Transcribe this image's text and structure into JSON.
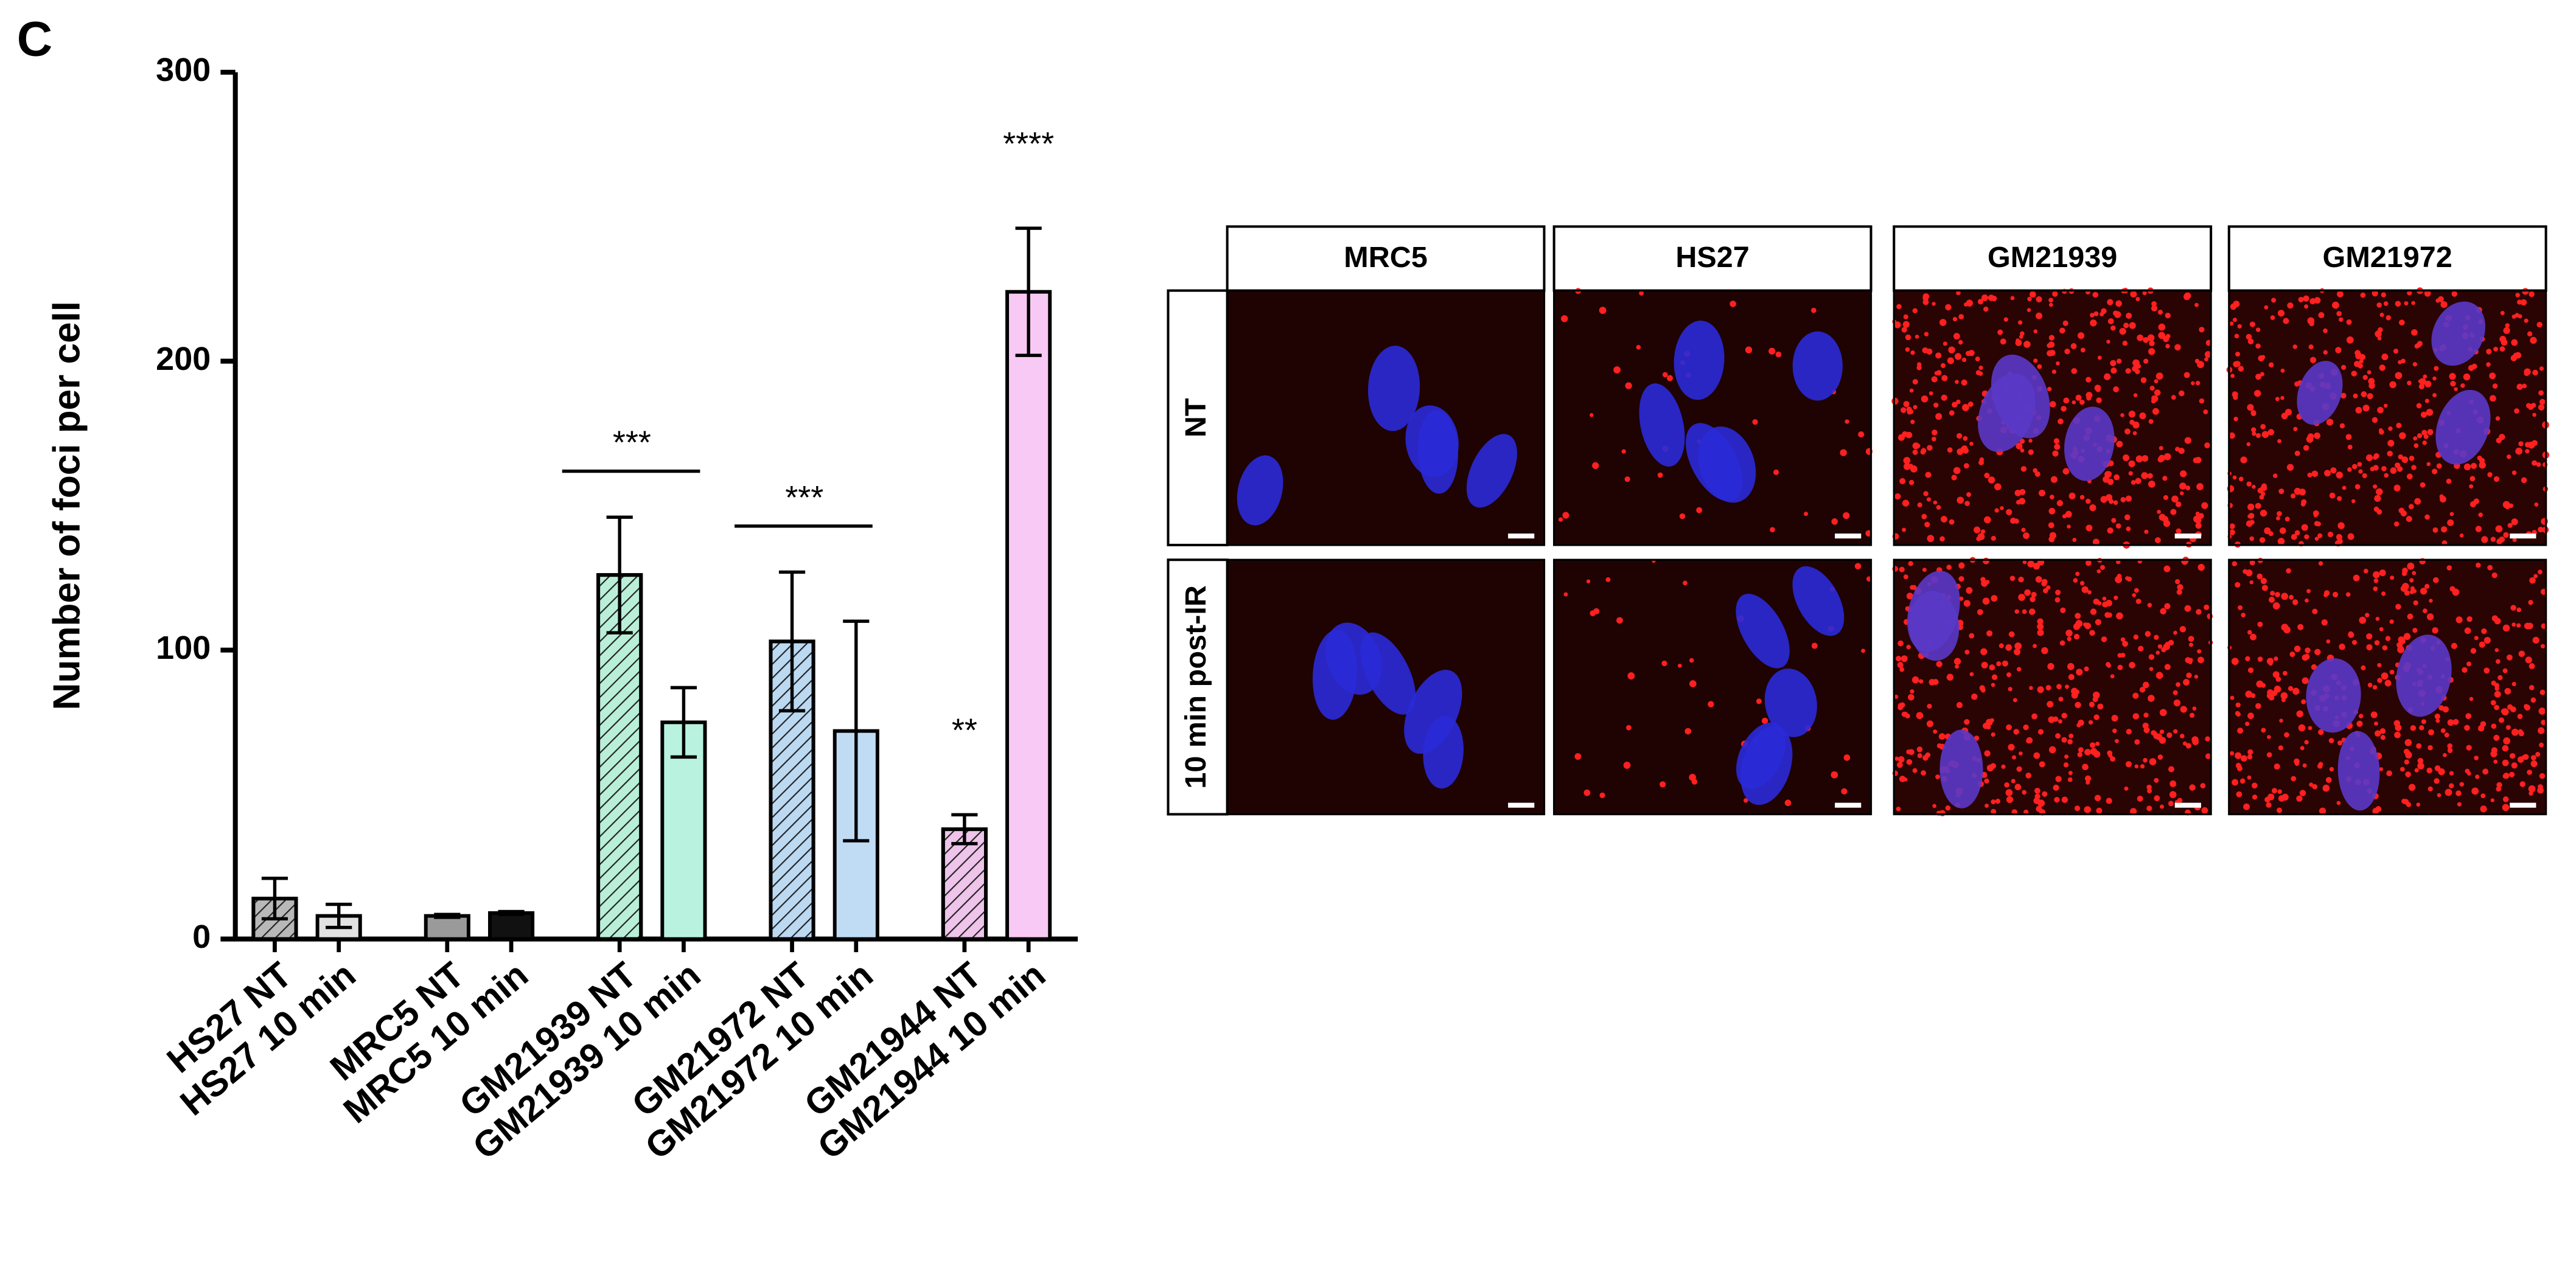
{
  "panel_label": "C",
  "chart_data": {
    "type": "bar",
    "ylabel": "Number of foci per cell",
    "categories": [
      "HS27 NT",
      "HS27 10 min",
      "MRC5 NT",
      "MRC5 10 min",
      "GM21939 NT",
      "GM21939 10 min",
      "GM21972 NT",
      "GM21972 10 min",
      "GM21944 NT",
      "GM21944 10 min"
    ],
    "values": [
      14,
      8,
      8,
      9,
      126,
      75,
      103,
      72,
      38,
      224
    ],
    "errors": [
      7,
      4,
      0.5,
      0.5,
      20,
      12,
      24,
      38,
      5,
      22
    ],
    "colors": [
      "#b8b8b8",
      "#e2e2e2",
      "#9a9a9a",
      "#111111",
      "#b9efd8",
      "#b9f3df",
      "#bcd9f2",
      "#c0dcf5",
      "#eec4ea",
      "#f7c9f4"
    ],
    "hatch": [
      true,
      false,
      false,
      false,
      true,
      false,
      true,
      false,
      true,
      false
    ],
    "ylim": [
      0,
      300
    ],
    "yticks": [
      0,
      100,
      200,
      300
    ],
    "annotations": [
      {
        "label": "***",
        "between": [
          "GM21939 NT",
          "GM21939 10 min"
        ]
      },
      {
        "label": "***",
        "between": [
          "GM21972 NT",
          "GM21972 10 min"
        ]
      },
      {
        "label": "**",
        "above": "GM21944 NT"
      },
      {
        "label": "****",
        "above": "GM21944 10 min"
      }
    ]
  },
  "image_panel": {
    "columns": [
      "MRC5",
      "HS27",
      "GM21939",
      "GM21972"
    ],
    "rows": [
      "NT",
      "10 min post-IR"
    ]
  }
}
